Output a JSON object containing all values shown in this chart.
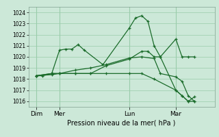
{
  "background_color": "#cce8d8",
  "plot_bg_color": "#cce8d8",
  "grid_color": "#99ccaa",
  "line_color": "#1a6b2a",
  "xlabel": "Pression niveau de la mer( hPa )",
  "ylim": [
    1015.5,
    1024.5
  ],
  "yticks": [
    1016,
    1017,
    1018,
    1019,
    1020,
    1021,
    1022,
    1023,
    1024
  ],
  "xlim": [
    0,
    12.0
  ],
  "day_labels": [
    "Dim",
    "Mer",
    "Lun",
    "Mar"
  ],
  "day_positions": [
    0.5,
    2.0,
    6.5,
    9.5
  ],
  "vline_positions": [
    0.5,
    2.0,
    6.5,
    9.5
  ],
  "series": [
    {
      "x": [
        0.5,
        0.9,
        1.5,
        2.0,
        2.4,
        2.8,
        3.2,
        3.6,
        4.8,
        6.5,
        6.9,
        7.3,
        7.7,
        8.1,
        8.5,
        9.5,
        9.9,
        10.3,
        10.7
      ],
      "y": [
        1018.3,
        1018.3,
        1018.5,
        1020.6,
        1020.7,
        1020.7,
        1021.1,
        1020.6,
        1019.3,
        1022.6,
        1023.5,
        1023.7,
        1023.2,
        1021.0,
        1020.0,
        1021.6,
        1020.0,
        1020.0,
        1020.0
      ]
    },
    {
      "x": [
        0.5,
        1.5,
        2.0,
        3.0,
        4.0,
        5.0,
        6.5,
        7.3,
        7.7,
        8.1,
        8.5,
        9.5,
        9.9,
        10.3,
        10.7
      ],
      "y": [
        1018.3,
        1018.5,
        1018.5,
        1018.5,
        1018.5,
        1019.2,
        1019.8,
        1020.5,
        1020.5,
        1020.0,
        1020.0,
        1017.0,
        1016.5,
        1016.0,
        1016.4
      ]
    },
    {
      "x": [
        0.5,
        1.5,
        2.0,
        3.0,
        4.0,
        5.0,
        6.5,
        7.3,
        8.1,
        8.5,
        9.5,
        9.9,
        10.3,
        10.7
      ],
      "y": [
        1018.3,
        1018.5,
        1018.5,
        1018.8,
        1019.0,
        1019.3,
        1019.9,
        1020.0,
        1019.85,
        1018.5,
        1018.2,
        1017.8,
        1016.5,
        1016.0
      ]
    },
    {
      "x": [
        0.5,
        1.5,
        2.0,
        3.0,
        4.0,
        5.0,
        6.5,
        7.3,
        8.1,
        9.5,
        9.9,
        10.3,
        10.7
      ],
      "y": [
        1018.3,
        1018.4,
        1018.5,
        1018.5,
        1018.5,
        1018.5,
        1018.5,
        1018.5,
        1018.0,
        1017.0,
        1016.5,
        1016.0,
        1016.0
      ]
    }
  ]
}
